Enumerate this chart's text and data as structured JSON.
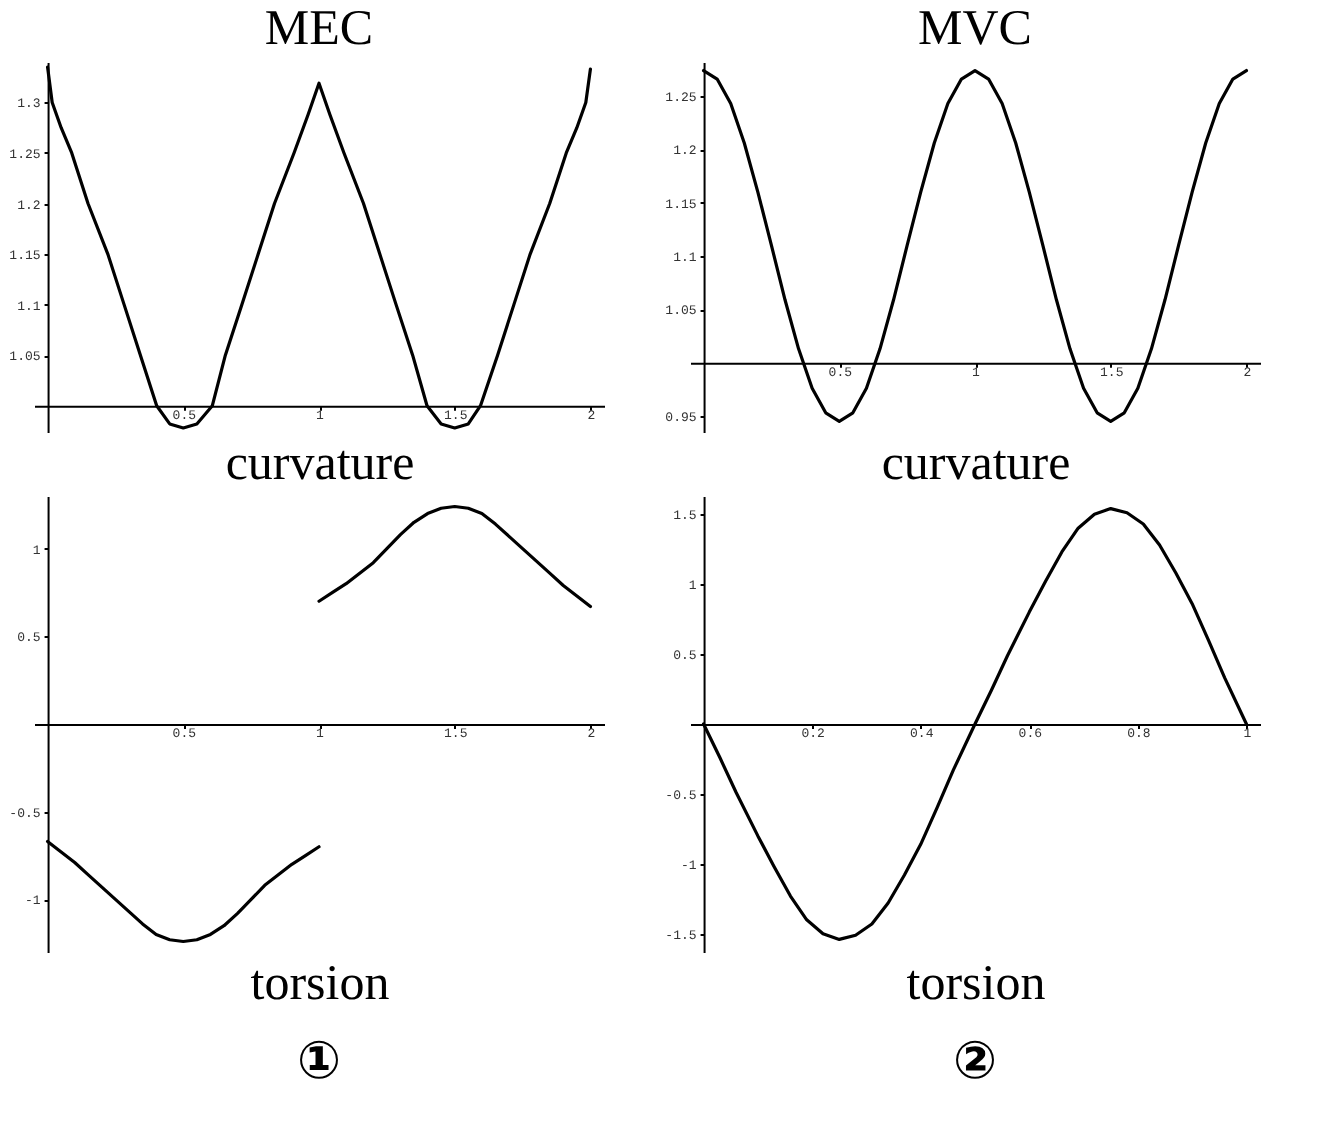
{
  "chart_data": [
    {
      "type": "line",
      "title": "MEC",
      "xlabel": "curvature",
      "xlim": [
        -0.05,
        2.05
      ],
      "ylim": [
        0.974,
        1.34
      ],
      "xticks": [
        0.5,
        1,
        1.5,
        2
      ],
      "yticks": [
        1.05,
        1.1,
        1.15,
        1.2,
        1.25,
        1.3
      ],
      "series": [
        {
          "color": "#000000",
          "x": [
            0,
            0.017,
            0.05,
            0.089,
            0.149,
            0.222,
            0.282,
            0.342,
            0.402,
            0.45,
            0.5,
            0.55,
            0.607,
            0.655,
            0.716,
            0.776,
            0.836,
            0.908,
            0.96,
            1.0,
            1.04,
            1.092,
            1.164,
            1.224,
            1.284,
            1.345,
            1.398,
            1.45,
            1.5,
            1.55,
            1.595,
            1.658,
            1.718,
            1.778,
            1.85,
            1.911,
            1.95,
            1.983,
            2.0
          ],
          "values": [
            1.335,
            1.3,
            1.275,
            1.25,
            1.2,
            1.15,
            1.1,
            1.05,
            1.0,
            0.982,
            0.978,
            0.982,
            1.0,
            1.05,
            1.1,
            1.15,
            1.2,
            1.25,
            1.288,
            1.319,
            1.288,
            1.25,
            1.2,
            1.15,
            1.1,
            1.05,
            1.0,
            0.982,
            0.978,
            0.982,
            1.0,
            1.05,
            1.1,
            1.15,
            1.2,
            1.25,
            1.275,
            1.3,
            1.333
          ]
        }
      ]
    },
    {
      "type": "line",
      "title": "MVC",
      "xlabel": "curvature",
      "xlim": [
        -0.05,
        2.05
      ],
      "ylim": [
        0.935,
        1.282
      ],
      "xticks": [
        0.5,
        1,
        1.5,
        2
      ],
      "yticks": [
        0.95,
        1.05,
        1.1,
        1.15,
        1.2,
        1.25
      ],
      "series": [
        {
          "color": "#000000",
          "x": [
            0,
            0.05,
            0.1,
            0.15,
            0.2,
            0.25,
            0.3,
            0.35,
            0.4,
            0.45,
            0.5,
            0.55,
            0.6,
            0.65,
            0.7,
            0.75,
            0.8,
            0.85,
            0.9,
            0.95,
            1.0,
            1.05,
            1.1,
            1.15,
            1.2,
            1.25,
            1.3,
            1.35,
            1.4,
            1.45,
            1.5,
            1.55,
            1.6,
            1.65,
            1.7,
            1.75,
            1.8,
            1.85,
            1.9,
            1.95,
            2.0
          ],
          "values": [
            1.274,
            1.266,
            1.243,
            1.206,
            1.16,
            1.11,
            1.059,
            1.013,
            0.976,
            0.953,
            0.945,
            0.953,
            0.976,
            1.013,
            1.059,
            1.11,
            1.16,
            1.206,
            1.243,
            1.266,
            1.274,
            1.266,
            1.243,
            1.206,
            1.16,
            1.11,
            1.059,
            1.013,
            0.976,
            0.953,
            0.945,
            0.953,
            0.976,
            1.013,
            1.059,
            1.11,
            1.16,
            1.206,
            1.243,
            1.266,
            1.274
          ]
        }
      ]
    },
    {
      "type": "line",
      "xlabel": "torsion",
      "annotations": [
        "①"
      ],
      "xlim": [
        -0.05,
        2.05
      ],
      "ylim": [
        -1.3,
        1.3
      ],
      "xticks": [
        0.5,
        1,
        1.5,
        2
      ],
      "yticks": [
        -1,
        -0.5,
        0.5,
        1
      ],
      "series": [
        {
          "color": "#000000",
          "x": [
            0,
            0.05,
            0.1,
            0.15,
            0.2,
            0.25,
            0.3,
            0.35,
            0.4,
            0.45,
            0.5,
            0.55,
            0.6,
            0.65,
            0.7,
            0.75,
            0.8,
            0.85,
            0.9,
            0.95,
            1.0
          ],
          "values": [
            -0.67,
            -0.73,
            -0.79,
            -0.86,
            -0.93,
            -1.0,
            -1.07,
            -1.14,
            -1.2,
            -1.23,
            -1.24,
            -1.23,
            -1.2,
            -1.15,
            -1.08,
            -1.0,
            -0.92,
            -0.86,
            -0.8,
            -0.75,
            -0.7
          ]
        },
        {
          "color": "#000000",
          "x": [
            1.0,
            1.05,
            1.1,
            1.15,
            1.2,
            1.25,
            1.3,
            1.35,
            1.4,
            1.45,
            1.5,
            1.55,
            1.6,
            1.65,
            1.7,
            1.75,
            1.8,
            1.85,
            1.9,
            1.95,
            2.0
          ],
          "values": [
            0.7,
            0.75,
            0.8,
            0.86,
            0.92,
            1.0,
            1.08,
            1.15,
            1.2,
            1.23,
            1.24,
            1.23,
            1.2,
            1.14,
            1.07,
            1.0,
            0.93,
            0.86,
            0.79,
            0.73,
            0.67
          ]
        }
      ]
    },
    {
      "type": "line",
      "xlabel": "torsion",
      "annotations": [
        "②"
      ],
      "xlim": [
        -0.025,
        1.025
      ],
      "ylim": [
        -1.63,
        1.63
      ],
      "xticks": [
        0.2,
        0.4,
        0.6,
        0.8,
        1
      ],
      "yticks": [
        -1.5,
        -1,
        -0.5,
        0.5,
        1,
        1.5
      ],
      "series": [
        {
          "color": "#000000",
          "x": [
            0,
            0.03,
            0.06,
            0.1,
            0.13,
            0.16,
            0.19,
            0.22,
            0.25,
            0.28,
            0.31,
            0.34,
            0.37,
            0.4,
            0.43,
            0.46,
            0.5,
            0.53,
            0.56,
            0.6,
            0.63,
            0.66,
            0.69,
            0.72,
            0.75,
            0.78,
            0.81,
            0.84,
            0.87,
            0.9,
            0.93,
            0.96,
            1.0
          ],
          "values": [
            0,
            -0.24,
            -0.49,
            -0.8,
            -1.02,
            -1.23,
            -1.4,
            -1.5,
            -1.54,
            -1.51,
            -1.43,
            -1.28,
            -1.08,
            -0.86,
            -0.6,
            -0.33,
            0,
            0.24,
            0.49,
            0.8,
            1.02,
            1.23,
            1.4,
            1.5,
            1.54,
            1.51,
            1.43,
            1.28,
            1.08,
            0.86,
            0.6,
            0.33,
            0
          ]
        }
      ]
    }
  ]
}
